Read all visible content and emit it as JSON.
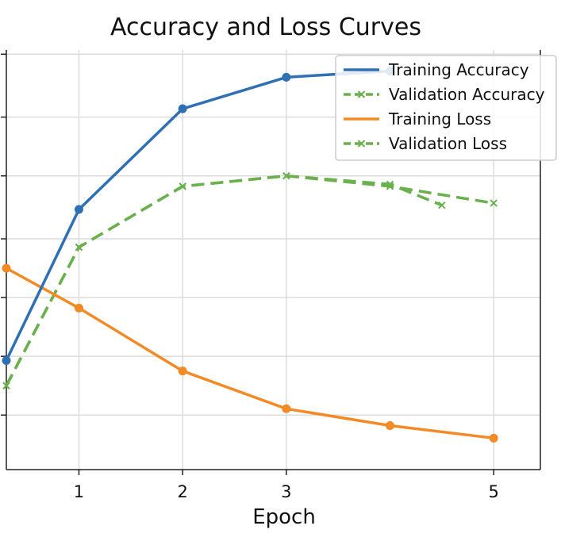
{
  "chart_data": {
    "type": "line",
    "title": "Accuracy and Loss Curves",
    "xlabel": "Epoch",
    "ylabel": "",
    "x_ticks": [
      1,
      2,
      3,
      5
    ],
    "xlim": [
      0.3,
      5.45
    ],
    "ylim": [
      0,
      1
    ],
    "y_tick_values": [
      0.13,
      0.27,
      0.41,
      0.55,
      0.7,
      0.84,
      0.99
    ],
    "grid": true,
    "legend_position": "top-right",
    "series": [
      {
        "name": "Training Accuracy",
        "color": "#2f6fb4",
        "style": "solid",
        "marker": "circle",
        "x": [
          0.3,
          1,
          2,
          3,
          4
        ],
        "y": [
          0.26,
          0.62,
          0.86,
          0.935,
          0.95
        ]
      },
      {
        "name": "Validation Accuracy",
        "color": "#6ab04c",
        "style": "dashed",
        "marker": "x",
        "x": [
          0.3,
          1,
          2,
          3,
          4,
          4.5
        ],
        "y": [
          0.2,
          0.53,
          0.675,
          0.7,
          0.68,
          0.63
        ]
      },
      {
        "name": "Training Loss",
        "color": "#f28a25",
        "style": "solid",
        "marker": "circle",
        "x": [
          0.3,
          1,
          2,
          3,
          4,
          5
        ],
        "y": [
          0.48,
          0.385,
          0.235,
          0.145,
          0.105,
          0.075
        ]
      },
      {
        "name": "Validation Loss",
        "color": "#6ab04c",
        "style": "dashed",
        "marker": "x",
        "x": [
          0.3,
          1,
          2,
          3,
          4,
          5
        ],
        "y": [
          0.2,
          0.53,
          0.675,
          0.7,
          0.675,
          0.635
        ]
      }
    ]
  }
}
